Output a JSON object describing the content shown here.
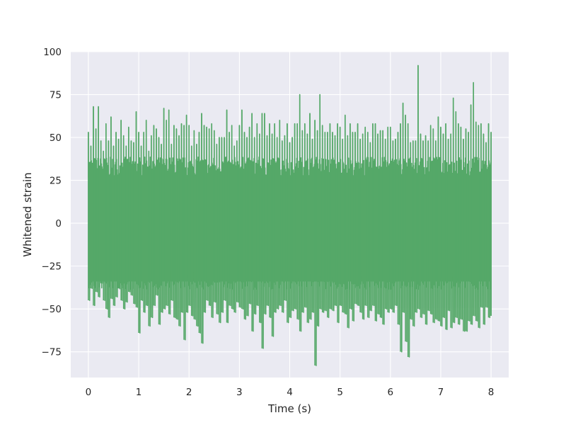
{
  "chart_data": {
    "type": "line",
    "title": "",
    "xlabel": "Time (s)",
    "ylabel": "Whitened strain",
    "xlim": [
      -0.35,
      8.35
    ],
    "ylim": [
      -90,
      100
    ],
    "xticks": [
      0,
      1,
      2,
      3,
      4,
      5,
      6,
      7,
      8
    ],
    "yticks": [
      -75,
      -50,
      -25,
      0,
      25,
      50,
      75,
      100
    ],
    "grid": true,
    "legend": "none",
    "colors": {
      "line": "#55a868",
      "background": "#eaeaf2",
      "grid": "#ffffff"
    },
    "series": [
      {
        "x": [
          0,
          0.05,
          0.1,
          0.15,
          0.2,
          0.25,
          0.3,
          0.35,
          0.4,
          0.45,
          0.5,
          0.55,
          0.6,
          0.65,
          0.7,
          0.75,
          0.8,
          0.85,
          0.9,
          0.95,
          1.0,
          1.05,
          1.1,
          1.15,
          1.2,
          1.25,
          1.3,
          1.35,
          1.4,
          1.45,
          1.5,
          1.55,
          1.6,
          1.65,
          1.7,
          1.75,
          1.8,
          1.85,
          1.9,
          1.95,
          2.0,
          2.05,
          2.1,
          2.15,
          2.2,
          2.25,
          2.3,
          2.35,
          2.4,
          2.45,
          2.5,
          2.55,
          2.6,
          2.65,
          2.7,
          2.75,
          2.8,
          2.85,
          2.9,
          2.95,
          3.0,
          3.05,
          3.1,
          3.15,
          3.2,
          3.25,
          3.3,
          3.35,
          3.4,
          3.45,
          3.5,
          3.55,
          3.6,
          3.65,
          3.7,
          3.75,
          3.8,
          3.85,
          3.9,
          3.95,
          4.0,
          4.05,
          4.1,
          4.15,
          4.2,
          4.25,
          4.3,
          4.35,
          4.4,
          4.45,
          4.5,
          4.55,
          4.6,
          4.65,
          4.7,
          4.75,
          4.8,
          4.85,
          4.9,
          4.95,
          5.0,
          5.05,
          5.1,
          5.15,
          5.2,
          5.25,
          5.3,
          5.35,
          5.4,
          5.45,
          5.5,
          5.55,
          5.6,
          5.65,
          5.7,
          5.75,
          5.8,
          5.85,
          5.9,
          5.95,
          6.0,
          6.05,
          6.1,
          6.15,
          6.2,
          6.25,
          6.3,
          6.35,
          6.4,
          6.45,
          6.5,
          6.55,
          6.6,
          6.65,
          6.7,
          6.75,
          6.8,
          6.85,
          6.9,
          6.95,
          7.0,
          7.05,
          7.1,
          7.15,
          7.2,
          7.25,
          7.3,
          7.35,
          7.4,
          7.45,
          7.5,
          7.55,
          7.6,
          7.65,
          7.7,
          7.75,
          7.8,
          7.85,
          7.9,
          7.95,
          8.0
        ],
        "ymax": [
          53,
          45,
          68,
          55,
          68,
          48,
          42,
          58,
          48,
          62,
          45,
          53,
          49,
          60,
          51,
          45,
          56,
          48,
          47,
          65,
          53,
          45,
          53,
          60,
          42,
          51,
          57,
          55,
          50,
          46,
          67,
          60,
          66,
          46,
          57,
          55,
          51,
          58,
          57,
          63,
          57,
          45,
          54,
          46,
          53,
          64,
          57,
          56,
          55,
          58,
          54,
          46,
          50,
          50,
          50,
          66,
          53,
          57,
          45,
          48,
          57,
          66,
          53,
          50,
          56,
          64,
          50,
          58,
          52,
          64,
          64,
          51,
          58,
          52,
          58,
          50,
          60,
          48,
          51,
          58,
          47,
          50,
          58,
          58,
          75,
          54,
          58,
          52,
          64,
          49,
          60,
          54,
          75,
          57,
          53,
          53,
          58,
          53,
          51,
          58,
          56,
          49,
          63,
          51,
          58,
          53,
          53,
          58,
          49,
          52,
          56,
          53,
          47,
          58,
          58,
          52,
          54,
          54,
          49,
          56,
          56,
          48,
          49,
          53,
          58,
          70,
          63,
          58,
          47,
          48,
          48,
          92,
          52,
          48,
          51,
          48,
          57,
          55,
          48,
          62,
          56,
          52,
          58,
          49,
          52,
          73,
          65,
          58,
          56,
          49,
          55,
          53,
          69,
          82,
          59,
          57,
          58,
          52,
          47,
          58,
          53
        ],
        "ymin": [
          -45,
          -38,
          -48,
          -40,
          -43,
          -35,
          -45,
          -50,
          -55,
          -44,
          -48,
          -43,
          -38,
          -45,
          -50,
          -46,
          -40,
          -42,
          -47,
          -49,
          -64,
          -45,
          -52,
          -48,
          -60,
          -55,
          -48,
          -42,
          -59,
          -52,
          -50,
          -48,
          -53,
          -45,
          -55,
          -56,
          -60,
          -52,
          -68,
          -52,
          -48,
          -54,
          -56,
          -60,
          -64,
          -70,
          -52,
          -45,
          -48,
          -55,
          -46,
          -53,
          -58,
          -52,
          -45,
          -58,
          -48,
          -50,
          -52,
          -46,
          -49,
          -50,
          -56,
          -54,
          -47,
          -63,
          -53,
          -48,
          -58,
          -73,
          -53,
          -48,
          -55,
          -66,
          -52,
          -50,
          -48,
          -52,
          -45,
          -58,
          -55,
          -51,
          -50,
          -56,
          -63,
          -52,
          -49,
          -58,
          -56,
          -52,
          -83,
          -60,
          -50,
          -52,
          -51,
          -55,
          -50,
          -51,
          -48,
          -58,
          -48,
          -52,
          -53,
          -61,
          -50,
          -57,
          -47,
          -48,
          -52,
          -56,
          -48,
          -55,
          -51,
          -48,
          -57,
          -53,
          -55,
          -59,
          -50,
          -52,
          -50,
          -52,
          -48,
          -59,
          -75,
          -52,
          -69,
          -78,
          -56,
          -60,
          -52,
          -50,
          -55,
          -53,
          -59,
          -51,
          -53,
          -58,
          -56,
          -57,
          -60,
          -55,
          -62,
          -51,
          -61,
          -58,
          -55,
          -59,
          -56,
          -63,
          -63,
          -57,
          -59,
          -54,
          -57,
          -61,
          -49,
          -59,
          -49,
          -55,
          -54
        ]
      }
    ]
  }
}
